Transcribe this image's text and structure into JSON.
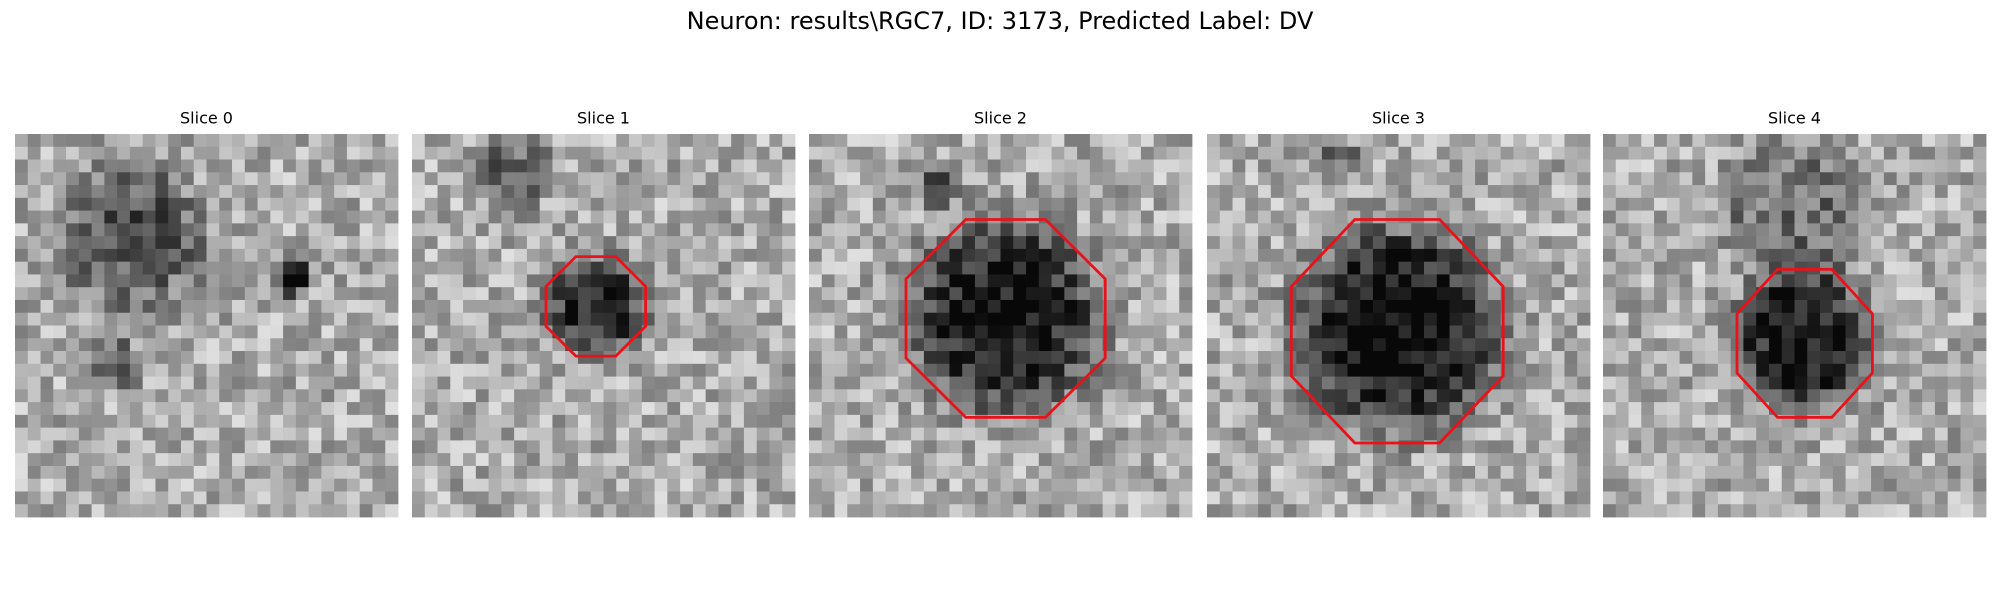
{
  "title": "Neuron: results\\RGC7, ID: 3173, Predicted Label: DV",
  "slices": [
    {
      "label": "Slice 0"
    },
    {
      "label": "Slice 1"
    },
    {
      "label": "Slice 2"
    },
    {
      "label": "Slice 3"
    },
    {
      "label": "Slice 4"
    }
  ]
}
